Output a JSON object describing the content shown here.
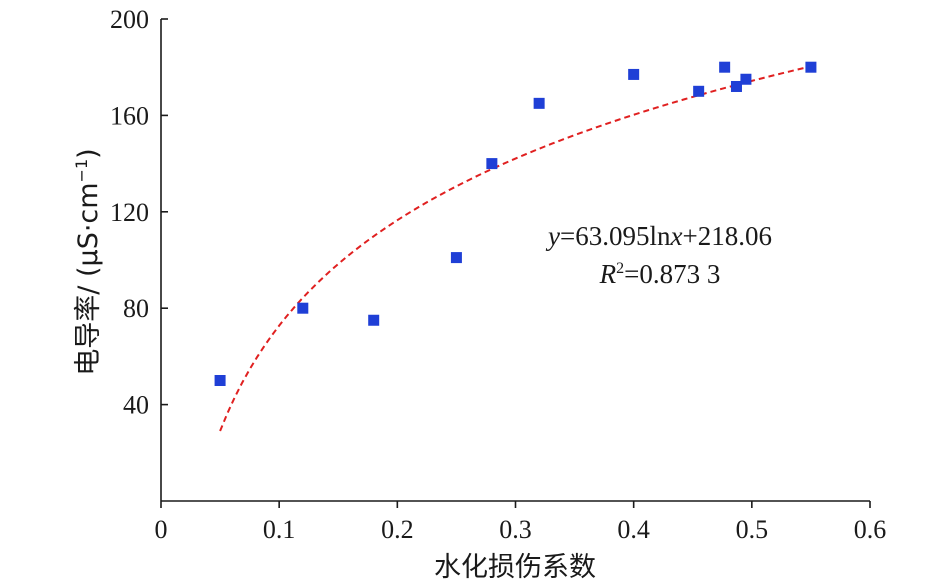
{
  "chart_data": {
    "type": "scatter",
    "xlabel": "水化损伤系数",
    "ylabel": "电导率/ (μS·cm",
    "ylabel_sup": "−1",
    "ylabel_close": ")",
    "xlim": [
      0,
      0.6
    ],
    "ylim": [
      0,
      200
    ],
    "x_ticks": [
      0,
      0.1,
      0.2,
      0.3,
      0.4,
      0.5,
      0.6
    ],
    "x_tick_labels": [
      "0",
      "0.1",
      "0.2",
      "0.3",
      "0.4",
      "0.5",
      "0.6"
    ],
    "y_ticks": [
      40,
      80,
      120,
      160,
      200
    ],
    "y_tick_labels": [
      "40",
      "80",
      "120",
      "160",
      "200"
    ],
    "points": [
      {
        "x": 0.05,
        "y": 50
      },
      {
        "x": 0.12,
        "y": 80
      },
      {
        "x": 0.18,
        "y": 75
      },
      {
        "x": 0.25,
        "y": 101
      },
      {
        "x": 0.28,
        "y": 140
      },
      {
        "x": 0.32,
        "y": 165
      },
      {
        "x": 0.4,
        "y": 177
      },
      {
        "x": 0.455,
        "y": 170
      },
      {
        "x": 0.477,
        "y": 180
      },
      {
        "x": 0.487,
        "y": 172
      },
      {
        "x": 0.495,
        "y": 175
      },
      {
        "x": 0.55,
        "y": 180
      }
    ],
    "fit": {
      "type": "log",
      "a": 63.095,
      "b": 218.06,
      "x_start": 0.05,
      "x_end": 0.55
    },
    "annotation": {
      "eq_y": "y",
      "eq_mid": "=63.095ln",
      "eq_x": "x",
      "eq_tail": "+218.06",
      "r2_R": "R",
      "r2_sup": "2",
      "r2_tail": "=0.873 3"
    },
    "marker_color": "#1f3fd6",
    "fit_color": "#e02020",
    "grid": false
  }
}
